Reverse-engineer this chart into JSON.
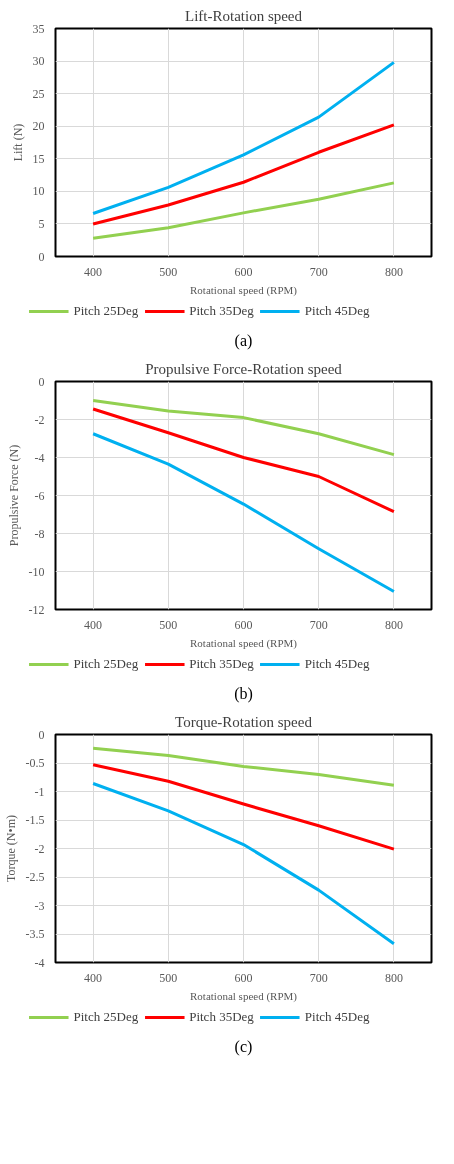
{
  "chart_data": [
    {
      "type": "line",
      "title": "Lift-Rotation speed",
      "xlabel": "Rotational speed (RPM)",
      "ylabel": "Lift (N)",
      "x": [
        400,
        500,
        600,
        700,
        800
      ],
      "xlim": [
        350,
        850
      ],
      "xticks": [
        400,
        500,
        600,
        700,
        800
      ],
      "ylim": [
        0,
        35
      ],
      "yticks": [
        0,
        5,
        10,
        15,
        20,
        25,
        30,
        35
      ],
      "grid": true,
      "legend": "bottom",
      "line_style": "solid",
      "annotations": [
        "(a)"
      ],
      "series": [
        {
          "name": "Pitch 25Deg",
          "color": "#92d050",
          "values": [
            2.8,
            4.4,
            6.7,
            8.8,
            11.3
          ]
        },
        {
          "name": "Pitch 35Deg",
          "color": "#ff0000",
          "values": [
            5.0,
            7.9,
            11.4,
            16.0,
            20.2
          ]
        },
        {
          "name": "Pitch 45Deg",
          "color": "#00b0f0",
          "values": [
            6.6,
            10.6,
            15.6,
            21.4,
            29.8
          ]
        }
      ]
    },
    {
      "type": "line",
      "title": "Propulsive Force-Rotation speed",
      "xlabel": "Rotational speed (RPM)",
      "ylabel": "Propulsive Force (N)",
      "x": [
        400,
        500,
        600,
        700,
        800
      ],
      "xlim": [
        350,
        850
      ],
      "xticks": [
        400,
        500,
        600,
        700,
        800
      ],
      "ylim": [
        -12,
        0
      ],
      "yticks": [
        -12,
        -10,
        -8,
        -6,
        -4,
        -2,
        0
      ],
      "grid": true,
      "legend": "bottom",
      "line_style": "solid",
      "annotations": [
        "(b)"
      ],
      "series": [
        {
          "name": "Pitch 25Deg",
          "color": "#92d050",
          "values": [
            -1.0,
            -1.55,
            -1.9,
            -2.75,
            -3.85
          ]
        },
        {
          "name": "Pitch 35Deg",
          "color": "#ff0000",
          "values": [
            -1.45,
            -2.7,
            -4.0,
            -5.0,
            -6.85
          ]
        },
        {
          "name": "Pitch 45Deg",
          "color": "#00b0f0",
          "values": [
            -2.75,
            -4.35,
            -6.45,
            -8.8,
            -11.05
          ]
        }
      ]
    },
    {
      "type": "line",
      "title": "Torque-Rotation speed",
      "xlabel": "Rotational speed (RPM)",
      "ylabel": "Torque (N•m)",
      "x": [
        400,
        500,
        600,
        700,
        800
      ],
      "xlim": [
        350,
        850
      ],
      "xticks": [
        400,
        500,
        600,
        700,
        800
      ],
      "ylim": [
        -4,
        0
      ],
      "yticks": [
        -4,
        -3.5,
        -3,
        -2.5,
        -2,
        -1.5,
        -1,
        -0.5,
        0
      ],
      "grid": true,
      "legend": "bottom",
      "line_style": "solid",
      "annotations": [
        "(c)"
      ],
      "series": [
        {
          "name": "Pitch 25Deg",
          "color": "#92d050",
          "values": [
            -0.24,
            -0.37,
            -0.56,
            -0.7,
            -0.89
          ]
        },
        {
          "name": "Pitch 35Deg",
          "color": "#ff0000",
          "values": [
            -0.53,
            -0.82,
            -1.22,
            -1.6,
            -2.01
          ]
        },
        {
          "name": "Pitch 45Deg",
          "color": "#00b0f0",
          "values": [
            -0.86,
            -1.34,
            -1.93,
            -2.73,
            -3.67
          ]
        }
      ]
    }
  ]
}
